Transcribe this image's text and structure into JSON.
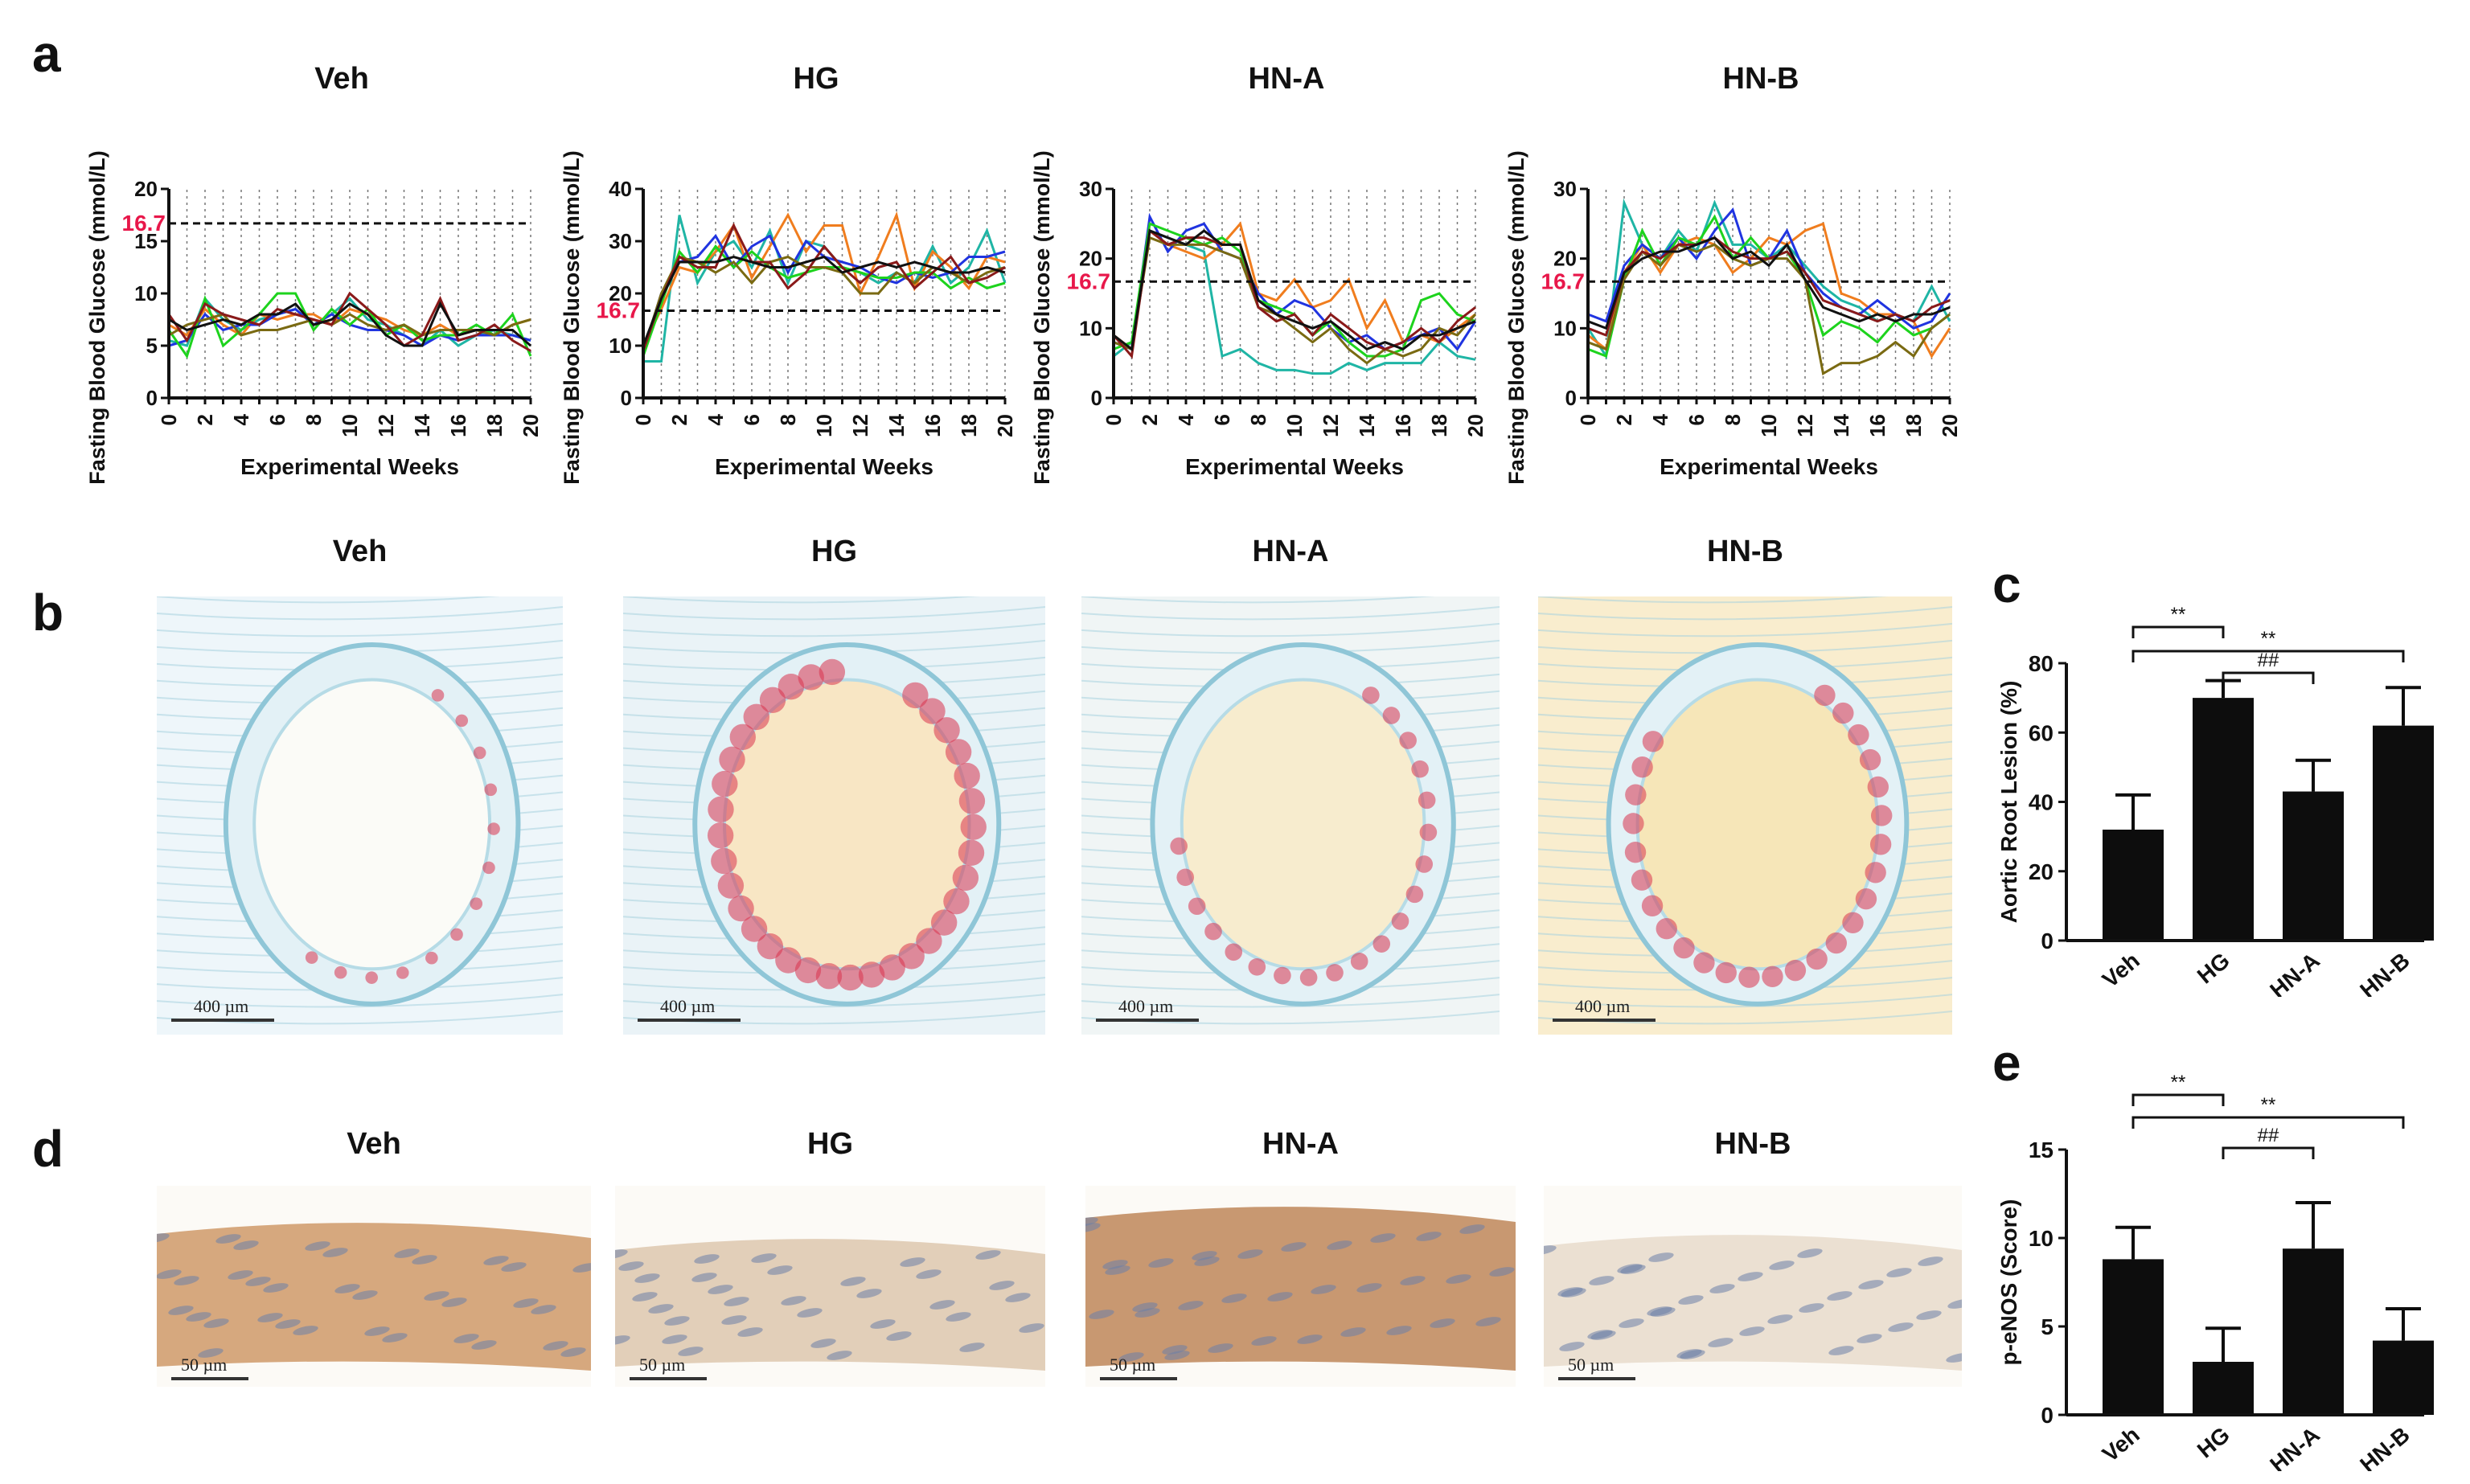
{
  "panels": {
    "a": "a",
    "b": "b",
    "c": "c",
    "d": "d",
    "e": "e"
  },
  "colors": {
    "threshold_label": "#e8174a",
    "lines": [
      "#1fb5a5",
      "#f07d1e",
      "#2034e0",
      "#1dd31d",
      "#7a6a12",
      "#8a1a1a",
      "#111111"
    ]
  },
  "glucose_charts": [
    {
      "title": "Veh",
      "xlabel": "Experimental Weeks",
      "ylabel": "Fasting Blood Glucose (mmol/L)",
      "ylim": [
        0,
        20
      ],
      "yticks": [
        "0",
        "5",
        "10",
        "15",
        "20"
      ],
      "threshold": 16.7,
      "threshold_label": "16.7",
      "series": [
        [
          5.5,
          5.0,
          9.5,
          7.5,
          6.5,
          7.5,
          8.0,
          8.5,
          7.0,
          8.0,
          9.5,
          7.5,
          7.0,
          6.0,
          5.0,
          6.5,
          5.0,
          6.0,
          6.5,
          6.0,
          5.5
        ],
        [
          7.0,
          6.0,
          8.5,
          7.0,
          6.0,
          8.0,
          7.5,
          8.0,
          8.0,
          7.0,
          8.5,
          8.0,
          7.5,
          6.5,
          6.0,
          7.0,
          6.0,
          6.5,
          6.0,
          7.0,
          7.5
        ],
        [
          5.0,
          5.5,
          8.0,
          6.5,
          7.0,
          7.0,
          8.0,
          8.5,
          7.0,
          8.0,
          7.0,
          6.5,
          6.5,
          6.0,
          5.0,
          6.0,
          5.5,
          6.0,
          6.0,
          6.0,
          5.5
        ],
        [
          6.5,
          4.0,
          9.5,
          5.0,
          6.5,
          8.0,
          10.0,
          10.0,
          6.5,
          8.5,
          7.0,
          8.5,
          6.0,
          7.0,
          5.5,
          6.0,
          6.0,
          7.0,
          6.0,
          8.0,
          4.0
        ],
        [
          6.0,
          7.0,
          7.5,
          8.0,
          6.0,
          6.5,
          6.5,
          7.0,
          7.5,
          7.0,
          8.0,
          7.0,
          6.5,
          7.0,
          6.0,
          6.5,
          6.5,
          6.5,
          6.0,
          7.0,
          7.5
        ],
        [
          8.0,
          5.5,
          9.0,
          8.0,
          7.5,
          7.0,
          8.5,
          8.0,
          7.5,
          7.0,
          10.0,
          8.5,
          7.0,
          5.0,
          6.0,
          9.5,
          5.5,
          6.0,
          7.0,
          5.5,
          4.5
        ],
        [
          7.5,
          6.5,
          7.0,
          7.5,
          7.0,
          8.0,
          8.0,
          9.0,
          7.0,
          7.5,
          9.0,
          8.0,
          6.0,
          5.0,
          5.0,
          9.0,
          6.0,
          6.5,
          6.5,
          6.5,
          5.0
        ]
      ]
    },
    {
      "title": "HG",
      "xlabel": "Experimental Weeks",
      "ylabel": "Fasting Blood Glucose (mmol/L)",
      "ylim": [
        0,
        40
      ],
      "yticks": [
        "0",
        "10",
        "20",
        "30",
        "40"
      ],
      "threshold": 16.7,
      "threshold_label": "16.7",
      "series": [
        [
          7.0,
          7.0,
          35.0,
          22.0,
          28.0,
          30.0,
          25.0,
          32.0,
          22.0,
          30.0,
          29.0,
          25.0,
          24.0,
          22.0,
          24.0,
          22.0,
          29.0,
          22.0,
          25.0,
          32.0,
          22.0
        ],
        [
          10.0,
          17.0,
          25.0,
          24.0,
          28.0,
          33.0,
          23.0,
          29.0,
          35.0,
          28.0,
          33.0,
          33.0,
          20.0,
          27.0,
          35.0,
          21.0,
          28.0,
          25.0,
          21.0,
          27.0,
          26.0
        ],
        [
          9.0,
          20.0,
          26.0,
          27.0,
          31.0,
          25.0,
          29.0,
          31.0,
          24.0,
          30.0,
          27.0,
          26.0,
          25.0,
          23.0,
          22.0,
          24.0,
          23.0,
          24.0,
          27.0,
          27.0,
          28.0
        ],
        [
          8.0,
          18.0,
          28.0,
          24.0,
          29.0,
          25.0,
          28.0,
          25.0,
          23.0,
          24.0,
          25.0,
          25.0,
          24.0,
          23.0,
          23.0,
          24.0,
          24.0,
          21.0,
          23.0,
          21.0,
          22.0
        ],
        [
          9.0,
          20.0,
          27.0,
          26.0,
          24.0,
          26.0,
          22.0,
          26.0,
          27.0,
          25.0,
          25.0,
          24.0,
          20.0,
          20.0,
          24.0,
          22.0,
          25.0,
          24.0,
          22.0,
          24.0,
          25.0
        ],
        [
          9.0,
          19.0,
          27.0,
          25.0,
          25.0,
          33.0,
          26.0,
          26.0,
          21.0,
          24.0,
          29.0,
          25.0,
          22.0,
          25.0,
          26.0,
          21.0,
          24.0,
          27.0,
          22.0,
          23.0,
          25.0
        ],
        [
          10.0,
          19.0,
          26.0,
          26.0,
          26.0,
          27.0,
          26.0,
          25.0,
          25.0,
          26.0,
          27.0,
          24.0,
          25.0,
          26.0,
          25.0,
          26.0,
          25.0,
          24.0,
          24.0,
          25.0,
          24.0
        ]
      ]
    },
    {
      "title": "HN-A",
      "xlabel": "Experimental Weeks",
      "ylabel": "Fasting Blood Glucose (mmol/L)",
      "ylim": [
        0,
        30
      ],
      "yticks": [
        "0",
        "10",
        "20",
        "30"
      ],
      "threshold": 16.7,
      "threshold_label": "16.7",
      "series": [
        [
          6.0,
          8.0,
          24.0,
          23.0,
          22.0,
          21.0,
          6.0,
          7.0,
          5.0,
          4.0,
          4.0,
          3.5,
          3.5,
          5.0,
          4.0,
          5.0,
          5.0,
          5.0,
          8.0,
          6.0,
          5.5
        ],
        [
          9.0,
          7.0,
          24.0,
          22.0,
          21.0,
          20.0,
          22.0,
          25.0,
          15.0,
          14.0,
          17.0,
          13.0,
          14.0,
          17.0,
          10.0,
          14.0,
          8.0,
          9.0,
          8.0,
          10.0,
          12.0
        ],
        [
          8.0,
          7.0,
          26.0,
          21.0,
          24.0,
          25.0,
          21.0,
          20.0,
          15.0,
          12.0,
          14.0,
          13.0,
          10.0,
          8.0,
          9.0,
          7.0,
          8.0,
          9.0,
          10.0,
          7.0,
          11.0
        ],
        [
          7.0,
          8.0,
          25.0,
          24.0,
          23.0,
          22.0,
          23.0,
          21.0,
          14.0,
          13.0,
          12.0,
          9.0,
          11.0,
          8.0,
          6.0,
          6.0,
          7.0,
          14.0,
          15.0,
          12.0,
          11.0
        ],
        [
          8.0,
          7.0,
          23.0,
          22.0,
          22.0,
          22.0,
          21.0,
          20.0,
          13.0,
          12.0,
          10.0,
          8.0,
          10.0,
          7.0,
          5.0,
          7.0,
          6.0,
          7.0,
          10.0,
          9.0,
          12.0
        ],
        [
          9.0,
          6.0,
          24.0,
          22.0,
          23.0,
          23.0,
          22.0,
          22.0,
          13.0,
          11.0,
          12.0,
          9.0,
          12.0,
          10.0,
          8.0,
          7.0,
          8.0,
          10.0,
          8.0,
          11.0,
          13.0
        ],
        [
          9.0,
          7.0,
          24.0,
          23.0,
          22.0,
          24.0,
          22.0,
          22.0,
          14.0,
          12.0,
          11.0,
          10.0,
          11.0,
          9.0,
          7.0,
          8.0,
          7.0,
          9.0,
          9.0,
          10.0,
          11.0
        ]
      ]
    },
    {
      "title": "HN-B",
      "xlabel": "Experimental Weeks",
      "ylabel": "Fasting Blood Glucose (mmol/L)",
      "ylim": [
        0,
        30
      ],
      "yticks": [
        "0",
        "10",
        "20",
        "30"
      ],
      "threshold": 16.7,
      "threshold_label": "16.7",
      "series": [
        [
          10.0,
          6.0,
          28.0,
          22.0,
          20.0,
          24.0,
          21.0,
          28.0,
          22.0,
          22.0,
          20.0,
          22.0,
          19.0,
          16.0,
          14.0,
          13.0,
          11.0,
          12.0,
          11.0,
          16.0,
          11.0
        ],
        [
          9.0,
          7.0,
          18.0,
          22.0,
          18.0,
          22.0,
          23.0,
          22.0,
          18.0,
          20.0,
          23.0,
          22.0,
          24.0,
          25.0,
          15.0,
          14.0,
          12.0,
          12.0,
          11.0,
          6.0,
          10.0
        ],
        [
          12.0,
          11.0,
          19.0,
          22.0,
          20.0,
          23.0,
          20.0,
          24.0,
          27.0,
          19.0,
          20.0,
          24.0,
          18.0,
          15.0,
          13.0,
          12.0,
          14.0,
          12.0,
          10.0,
          11.0,
          15.0
        ],
        [
          7.0,
          6.0,
          17.0,
          24.0,
          19.0,
          23.0,
          22.0,
          26.0,
          20.0,
          23.0,
          20.0,
          21.0,
          17.0,
          9.0,
          11.0,
          10.0,
          8.0,
          11.0,
          9.0,
          10.0,
          12.0
        ],
        [
          8.0,
          7.0,
          17.0,
          21.0,
          19.0,
          22.0,
          21.0,
          22.0,
          20.0,
          19.0,
          20.0,
          20.0,
          17.0,
          3.5,
          5.0,
          5.0,
          6.0,
          8.0,
          6.0,
          10.0,
          12.0
        ],
        [
          10.0,
          9.0,
          18.0,
          21.0,
          20.0,
          22.0,
          22.0,
          23.0,
          21.0,
          20.0,
          20.0,
          21.0,
          18.0,
          14.0,
          13.0,
          12.0,
          11.0,
          12.0,
          11.0,
          13.0,
          14.0
        ],
        [
          11.0,
          10.0,
          18.0,
          20.0,
          21.0,
          21.0,
          22.0,
          23.0,
          20.0,
          21.0,
          19.0,
          22.0,
          17.0,
          13.0,
          12.0,
          11.0,
          12.0,
          11.0,
          12.0,
          12.0,
          13.0
        ]
      ]
    }
  ],
  "stain_b": [
    {
      "title": "Veh",
      "scale": "400 µm"
    },
    {
      "title": "HG",
      "scale": "400 µm"
    },
    {
      "title": "HN-A",
      "scale": "400 µm"
    },
    {
      "title": "HN-B",
      "scale": "400 µm"
    }
  ],
  "stain_d": [
    {
      "title": "Veh",
      "scale": "50 µm"
    },
    {
      "title": "HG",
      "scale": "50 µm"
    },
    {
      "title": "HN-A",
      "scale": "50 µm"
    },
    {
      "title": "HN-B",
      "scale": "50 µm"
    }
  ],
  "chart_data": [
    {
      "type": "bar",
      "title": "",
      "ylabel": "Aortic Root Lesion (%)",
      "categories": [
        "Veh",
        "HG",
        "HN-A",
        "HN-B"
      ],
      "values": [
        32,
        70,
        43,
        62
      ],
      "errors": [
        10,
        5,
        9,
        11
      ],
      "ylim": [
        0,
        80
      ],
      "yticks": [
        "0",
        "20",
        "40",
        "60",
        "80"
      ],
      "brackets": [
        {
          "from": 0,
          "to": 1,
          "label": "**"
        },
        {
          "from": 0,
          "to": 3,
          "label": "**"
        },
        {
          "from": 1,
          "to": 2,
          "label": "##"
        }
      ]
    },
    {
      "type": "bar",
      "title": "",
      "ylabel": "p-eNOS (Score)",
      "categories": [
        "Veh",
        "HG",
        "HN-A",
        "HN-B"
      ],
      "values": [
        8.8,
        3.0,
        9.4,
        4.2
      ],
      "errors": [
        1.8,
        1.9,
        2.6,
        1.8
      ],
      "ylim": [
        0,
        15
      ],
      "yticks": [
        "0",
        "5",
        "10",
        "15"
      ],
      "brackets": [
        {
          "from": 0,
          "to": 3,
          "label": "**"
        },
        {
          "from": 0,
          "to": 1,
          "label": "**"
        },
        {
          "from": 1,
          "to": 2,
          "label": "##"
        }
      ]
    }
  ]
}
